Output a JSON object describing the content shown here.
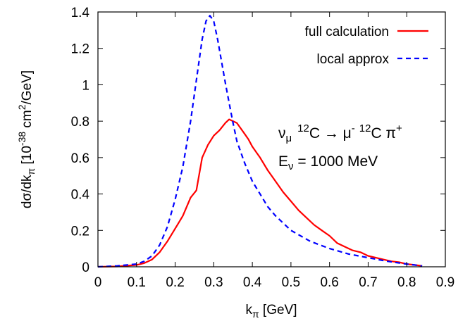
{
  "chart_data": {
    "type": "line",
    "title": "",
    "xlabel": {
      "main": "k",
      "sub": "π",
      "rest": " [GeV]"
    },
    "ylabel": {
      "p1": "dσ/dk",
      "sub": "π",
      "p2": " [10",
      "sup1": "-38",
      "p3": " cm",
      "sup2": "2",
      "p4": "/GeV]"
    },
    "xlim": [
      0,
      0.9
    ],
    "ylim": [
      0,
      1.4
    ],
    "xticks": [
      0,
      0.1,
      0.2,
      0.3,
      0.4,
      0.5,
      0.6,
      0.7,
      0.8,
      0.9
    ],
    "xtick_labels": [
      "0",
      "0.1",
      "0.2",
      "0.3",
      "0.4",
      "0.5",
      "0.6",
      "0.7",
      "0.8",
      "0.9"
    ],
    "yticks": [
      0,
      0.2,
      0.4,
      0.6,
      0.8,
      1,
      1.2,
      1.4
    ],
    "ytick_labels": [
      "0",
      "0.2",
      "0.4",
      "0.6",
      "0.8",
      "1",
      "1.2",
      "1.4"
    ],
    "grid": false,
    "legend_position": "top-right",
    "series": [
      {
        "name": "full calculation",
        "color": "#ff0000",
        "style": "solid",
        "x": [
          0,
          0.05,
          0.1,
          0.12,
          0.14,
          0.16,
          0.18,
          0.2,
          0.22,
          0.24,
          0.255,
          0.27,
          0.285,
          0.3,
          0.315,
          0.33,
          0.34,
          0.35,
          0.36,
          0.37,
          0.38,
          0.39,
          0.4,
          0.41,
          0.42,
          0.44,
          0.46,
          0.48,
          0.5,
          0.52,
          0.54,
          0.56,
          0.58,
          0.6,
          0.62,
          0.64,
          0.66,
          0.68,
          0.7,
          0.72,
          0.74,
          0.76,
          0.78,
          0.8,
          0.82,
          0.84
        ],
        "y": [
          0,
          0.002,
          0.01,
          0.02,
          0.04,
          0.08,
          0.14,
          0.21,
          0.28,
          0.38,
          0.42,
          0.6,
          0.67,
          0.72,
          0.75,
          0.79,
          0.81,
          0.8,
          0.79,
          0.76,
          0.73,
          0.7,
          0.66,
          0.63,
          0.6,
          0.53,
          0.47,
          0.41,
          0.36,
          0.31,
          0.27,
          0.23,
          0.2,
          0.17,
          0.13,
          0.11,
          0.09,
          0.08,
          0.06,
          0.05,
          0.04,
          0.03,
          0.025,
          0.015,
          0.01,
          0.005
        ]
      },
      {
        "name": "local approx",
        "color": "#0000ff",
        "style": "dashed",
        "x": [
          0,
          0.05,
          0.1,
          0.12,
          0.14,
          0.16,
          0.18,
          0.2,
          0.22,
          0.24,
          0.26,
          0.27,
          0.28,
          0.29,
          0.3,
          0.31,
          0.32,
          0.33,
          0.34,
          0.35,
          0.36,
          0.38,
          0.4,
          0.42,
          0.44,
          0.46,
          0.5,
          0.55,
          0.6,
          0.65,
          0.7,
          0.75,
          0.8,
          0.84
        ],
        "y": [
          0,
          0.005,
          0.015,
          0.03,
          0.06,
          0.12,
          0.22,
          0.37,
          0.55,
          0.8,
          1.1,
          1.25,
          1.35,
          1.38,
          1.35,
          1.25,
          1.13,
          1.01,
          0.9,
          0.79,
          0.69,
          0.57,
          0.47,
          0.4,
          0.33,
          0.28,
          0.2,
          0.14,
          0.1,
          0.07,
          0.05,
          0.03,
          0.015,
          0.005
        ]
      }
    ],
    "annotations": {
      "reaction": {
        "nu": "ν",
        "nu_sub": "μ",
        "sup12a": "12",
        "c1": "C → μ",
        "mu_sup": "-",
        "sup12b": "12",
        "c2": "C π",
        "pi_sup": "+"
      },
      "energy": {
        "e": "E",
        "e_sub": "ν",
        "rest": " = 1000 MeV"
      }
    }
  }
}
